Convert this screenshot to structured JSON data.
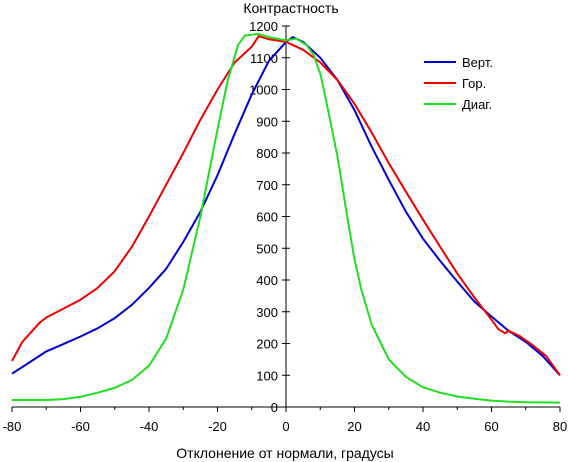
{
  "chart_data": {
    "type": "line",
    "title": "",
    "xlabel": "Отклонение от нормали, градусы",
    "ylabel": "Контрастность",
    "xlim": [
      -80,
      80
    ],
    "ylim": [
      0,
      1200
    ],
    "x_ticks": [
      -80,
      -60,
      -40,
      -20,
      0,
      20,
      40,
      60,
      80
    ],
    "y_ticks": [
      0,
      100,
      200,
      300,
      400,
      500,
      600,
      700,
      800,
      900,
      1000,
      1100,
      1200
    ],
    "grid": false,
    "legend_position": "top-right",
    "series": [
      {
        "name": "Верт.",
        "color": "#0000cc",
        "points": [
          [
            -80,
            105
          ],
          [
            -75,
            140
          ],
          [
            -70,
            175
          ],
          [
            -65,
            198
          ],
          [
            -60,
            222
          ],
          [
            -55,
            248
          ],
          [
            -50,
            280
          ],
          [
            -45,
            322
          ],
          [
            -40,
            375
          ],
          [
            -35,
            435
          ],
          [
            -30,
            520
          ],
          [
            -25,
            615
          ],
          [
            -20,
            730
          ],
          [
            -15,
            860
          ],
          [
            -10,
            985
          ],
          [
            -5,
            1090
          ],
          [
            0,
            1150
          ],
          [
            2,
            1165
          ],
          [
            5,
            1150
          ],
          [
            10,
            1100
          ],
          [
            15,
            1030
          ],
          [
            20,
            935
          ],
          [
            25,
            820
          ],
          [
            30,
            715
          ],
          [
            35,
            615
          ],
          [
            40,
            530
          ],
          [
            45,
            460
          ],
          [
            50,
            395
          ],
          [
            55,
            332
          ],
          [
            60,
            285
          ],
          [
            65,
            240
          ],
          [
            70,
            205
          ],
          [
            75,
            160
          ],
          [
            80,
            100
          ]
        ]
      },
      {
        "name": "Гор.",
        "color": "#ee0000",
        "points": [
          [
            -80,
            145
          ],
          [
            -77,
            205
          ],
          [
            -72,
            265
          ],
          [
            -70,
            282
          ],
          [
            -65,
            310
          ],
          [
            -60,
            338
          ],
          [
            -55,
            375
          ],
          [
            -50,
            428
          ],
          [
            -45,
            505
          ],
          [
            -40,
            600
          ],
          [
            -35,
            700
          ],
          [
            -30,
            800
          ],
          [
            -25,
            905
          ],
          [
            -20,
            1000
          ],
          [
            -15,
            1085
          ],
          [
            -10,
            1135
          ],
          [
            -8,
            1168
          ],
          [
            -5,
            1158
          ],
          [
            0,
            1150
          ],
          [
            5,
            1125
          ],
          [
            10,
            1085
          ],
          [
            15,
            1030
          ],
          [
            20,
            955
          ],
          [
            25,
            865
          ],
          [
            30,
            768
          ],
          [
            35,
            678
          ],
          [
            40,
            590
          ],
          [
            45,
            505
          ],
          [
            50,
            420
          ],
          [
            55,
            345
          ],
          [
            60,
            275
          ],
          [
            62,
            245
          ],
          [
            64,
            232
          ],
          [
            65,
            240
          ],
          [
            68,
            225
          ],
          [
            72,
            195
          ],
          [
            76,
            160
          ],
          [
            80,
            100
          ]
        ]
      },
      {
        "name": "Диаг.",
        "color": "#22dd22",
        "points": [
          [
            -80,
            22
          ],
          [
            -70,
            22
          ],
          [
            -65,
            25
          ],
          [
            -60,
            32
          ],
          [
            -55,
            45
          ],
          [
            -50,
            60
          ],
          [
            -45,
            85
          ],
          [
            -40,
            130
          ],
          [
            -35,
            215
          ],
          [
            -30,
            370
          ],
          [
            -25,
            600
          ],
          [
            -20,
            875
          ],
          [
            -17,
            1030
          ],
          [
            -14,
            1140
          ],
          [
            -12,
            1170
          ],
          [
            -8,
            1175
          ],
          [
            -5,
            1165
          ],
          [
            0,
            1155
          ],
          [
            3,
            1160
          ],
          [
            6,
            1140
          ],
          [
            8,
            1110
          ],
          [
            10,
            1050
          ],
          [
            12,
            950
          ],
          [
            15,
            790
          ],
          [
            18,
            590
          ],
          [
            20,
            465
          ],
          [
            22,
            370
          ],
          [
            25,
            260
          ],
          [
            30,
            150
          ],
          [
            35,
            95
          ],
          [
            40,
            62
          ],
          [
            45,
            45
          ],
          [
            50,
            33
          ],
          [
            55,
            26
          ],
          [
            60,
            20
          ],
          [
            65,
            17
          ],
          [
            70,
            15
          ],
          [
            80,
            14
          ]
        ]
      }
    ]
  }
}
